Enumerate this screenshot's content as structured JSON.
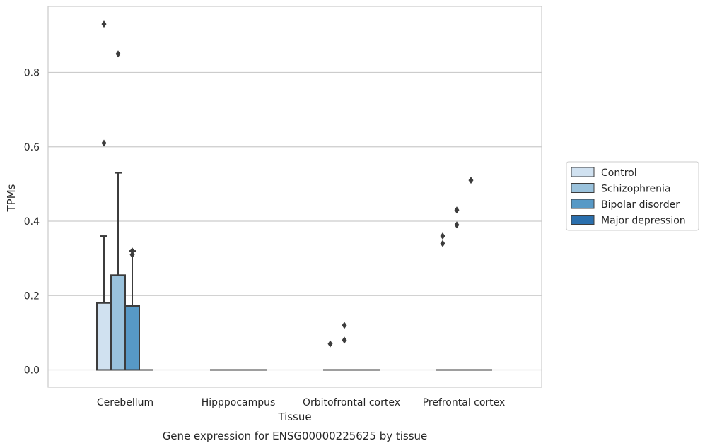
{
  "caption": "Gene expression for ENSG00000225625 by tissue",
  "chart_data": {
    "type": "box",
    "xlabel": "Tissue",
    "ylabel": "TPMs",
    "ylim": [
      -0.045,
      0.98
    ],
    "yticks": [
      0.0,
      0.2,
      0.4,
      0.6,
      0.8
    ],
    "ytick_labels": [
      "0.0",
      "0.2",
      "0.4",
      "0.6",
      "0.8"
    ],
    "grid": "horizontal",
    "legend_position": "right",
    "categories": [
      "Cerebellum",
      "Hipppocampus",
      "Orbitofrontal cortex",
      "Prefrontal cortex"
    ],
    "series": [
      {
        "name": "Control",
        "color": "#d0e1f0",
        "boxes": [
          {
            "q1": 0.0,
            "median": 0.0,
            "q3": 0.18,
            "whisker_low": 0.0,
            "whisker_high": 0.36,
            "outliers": [
              0.61,
              0.93
            ]
          },
          {
            "q1": 0.0,
            "median": 0.0,
            "q3": 0.0,
            "whisker_low": 0.0,
            "whisker_high": 0.0,
            "outliers": []
          },
          {
            "q1": 0.0,
            "median": 0.0,
            "q3": 0.0,
            "whisker_low": 0.0,
            "whisker_high": 0.0,
            "outliers": [
              0.07
            ]
          },
          {
            "q1": 0.0,
            "median": 0.0,
            "q3": 0.0,
            "whisker_low": 0.0,
            "whisker_high": 0.0,
            "outliers": [
              0.34,
              0.36
            ]
          }
        ]
      },
      {
        "name": "Schizophrenia",
        "color": "#9ac2dc",
        "boxes": [
          {
            "q1": 0.0,
            "median": 0.0,
            "q3": 0.255,
            "whisker_low": 0.0,
            "whisker_high": 0.53,
            "outliers": [
              0.85
            ]
          },
          {
            "q1": 0.0,
            "median": 0.0,
            "q3": 0.0,
            "whisker_low": 0.0,
            "whisker_high": 0.0,
            "outliers": []
          },
          {
            "q1": 0.0,
            "median": 0.0,
            "q3": 0.0,
            "whisker_low": 0.0,
            "whisker_high": 0.0,
            "outliers": [
              0.08,
              0.12
            ]
          },
          {
            "q1": 0.0,
            "median": 0.0,
            "q3": 0.0,
            "whisker_low": 0.0,
            "whisker_high": 0.0,
            "outliers": [
              0.39,
              0.43
            ]
          }
        ]
      },
      {
        "name": "Bipolar disorder",
        "color": "#5799c6",
        "boxes": [
          {
            "q1": 0.0,
            "median": 0.0,
            "q3": 0.172,
            "whisker_low": 0.0,
            "whisker_high": 0.32,
            "outliers": [
              0.31,
              0.32
            ]
          },
          {
            "q1": 0.0,
            "median": 0.0,
            "q3": 0.0,
            "whisker_low": 0.0,
            "whisker_high": 0.0,
            "outliers": []
          },
          {
            "q1": 0.0,
            "median": 0.0,
            "q3": 0.0,
            "whisker_low": 0.0,
            "whisker_high": 0.0,
            "outliers": []
          },
          {
            "q1": 0.0,
            "median": 0.0,
            "q3": 0.0,
            "whisker_low": 0.0,
            "whisker_high": 0.0,
            "outliers": [
              0.51
            ]
          }
        ]
      },
      {
        "name": "Major depression",
        "color": "#2a6fad",
        "boxes": [
          {
            "q1": 0.0,
            "median": 0.0,
            "q3": 0.0,
            "whisker_low": 0.0,
            "whisker_high": 0.0,
            "outliers": []
          },
          {
            "q1": 0.0,
            "median": 0.0,
            "q3": 0.0,
            "whisker_low": 0.0,
            "whisker_high": 0.0,
            "outliers": []
          },
          {
            "q1": 0.0,
            "median": 0.0,
            "q3": 0.0,
            "whisker_low": 0.0,
            "whisker_high": 0.0,
            "outliers": []
          },
          {
            "q1": 0.0,
            "median": 0.0,
            "q3": 0.0,
            "whisker_low": 0.0,
            "whisker_high": 0.0,
            "outliers": []
          }
        ]
      }
    ]
  }
}
